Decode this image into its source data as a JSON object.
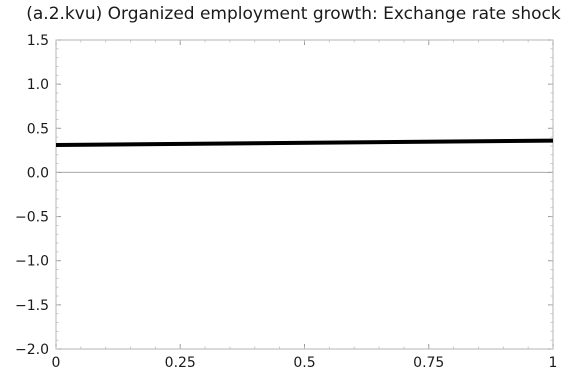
{
  "chart_data": {
    "type": "line",
    "title": "(a.2.kvu) Organized employment growth: Exchange rate shock",
    "xlabel": "",
    "ylabel": "",
    "xlim": [
      0,
      1
    ],
    "ylim": [
      -2.0,
      1.5
    ],
    "x_ticks": [
      0,
      0.25,
      0.5,
      0.75,
      1
    ],
    "x_tick_labels": [
      "0",
      "0.25",
      "0.5",
      "0.75",
      "1"
    ],
    "y_ticks": [
      1.5,
      1.0,
      0.5,
      0.0,
      -0.5,
      -1.0,
      -1.5,
      -2.0
    ],
    "y_tick_labels": [
      "1.5",
      "1.0",
      "0.5",
      "0.0",
      "−0.5",
      "−1.0",
      "−1.5",
      "−2.0"
    ],
    "zero_line": true,
    "grid": false,
    "series": [
      {
        "x": [
          0,
          1
        ],
        "y": [
          0.31,
          0.36
        ],
        "color": "#000000"
      }
    ]
  }
}
